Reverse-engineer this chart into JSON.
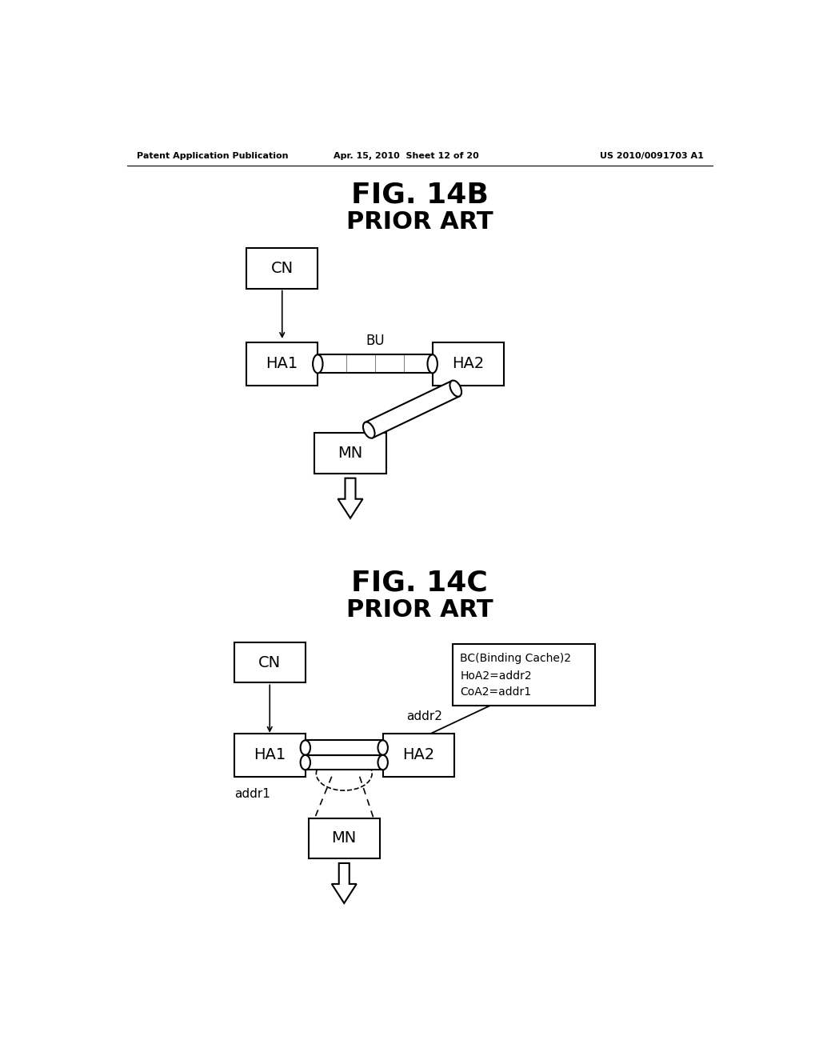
{
  "header_left": "Patent Application Publication",
  "header_mid": "Apr. 15, 2010  Sheet 12 of 20",
  "header_right": "US 2010/0091703 A1",
  "fig14b_title": "FIG. 14B",
  "fig14b_subtitle": "PRIOR ART",
  "fig14c_title": "FIG. 14C",
  "fig14c_subtitle": "PRIOR ART",
  "bg_color": "#ffffff",
  "label_CN1": "CN",
  "label_HA1_b": "HA1",
  "label_HA2_b": "HA2",
  "label_MN_b": "MN",
  "label_BU": "BU",
  "label_CN2": "CN",
  "label_HA1_c": "HA1",
  "label_HA2_c": "HA2",
  "label_MN_c": "MN",
  "label_addr1": "addr1",
  "label_addr2": "addr2",
  "callout_line1": "BC(Binding Cache)2",
  "callout_line2": "HoA2=addr2",
  "callout_line3": "CoA2=addr1"
}
